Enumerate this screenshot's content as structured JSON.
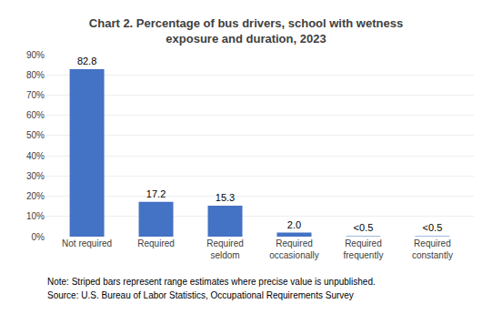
{
  "chart_data": {
    "type": "bar",
    "title": "Chart 2. Percentage of bus drivers, school with wetness\nexposure and duration, 2023",
    "categories": [
      "Not required",
      "Required",
      "Required\nseldom",
      "Required\noccasionally",
      "Required\nfrequently",
      "Required\nconstantly"
    ],
    "values": [
      82.8,
      17.2,
      15.3,
      2.0,
      0.25,
      0.25
    ],
    "value_labels": [
      "82.8",
      "17.2",
      "15.3",
      "2.0",
      "<0.5",
      "<0.5"
    ],
    "data_labels": true,
    "color": "#4472C4",
    "ylim": [
      0,
      90
    ],
    "yticks": [
      {
        "value": 0,
        "label": "0%"
      },
      {
        "value": 10,
        "label": "10%"
      },
      {
        "value": 20,
        "label": "20%"
      },
      {
        "value": 30,
        "label": "30%"
      },
      {
        "value": 40,
        "label": "40%"
      },
      {
        "value": 50,
        "label": "50%"
      },
      {
        "value": 60,
        "label": "60%"
      },
      {
        "value": 70,
        "label": "70%"
      },
      {
        "value": 80,
        "label": "80%"
      },
      {
        "value": 90,
        "label": "90%"
      }
    ],
    "grid": true,
    "annotations": [
      "Note: Striped bars represent range estimates where precise value is unpublished.",
      "Source: U.S. Bureau of Labor Statistics, Occupational Requirements Survey"
    ]
  }
}
